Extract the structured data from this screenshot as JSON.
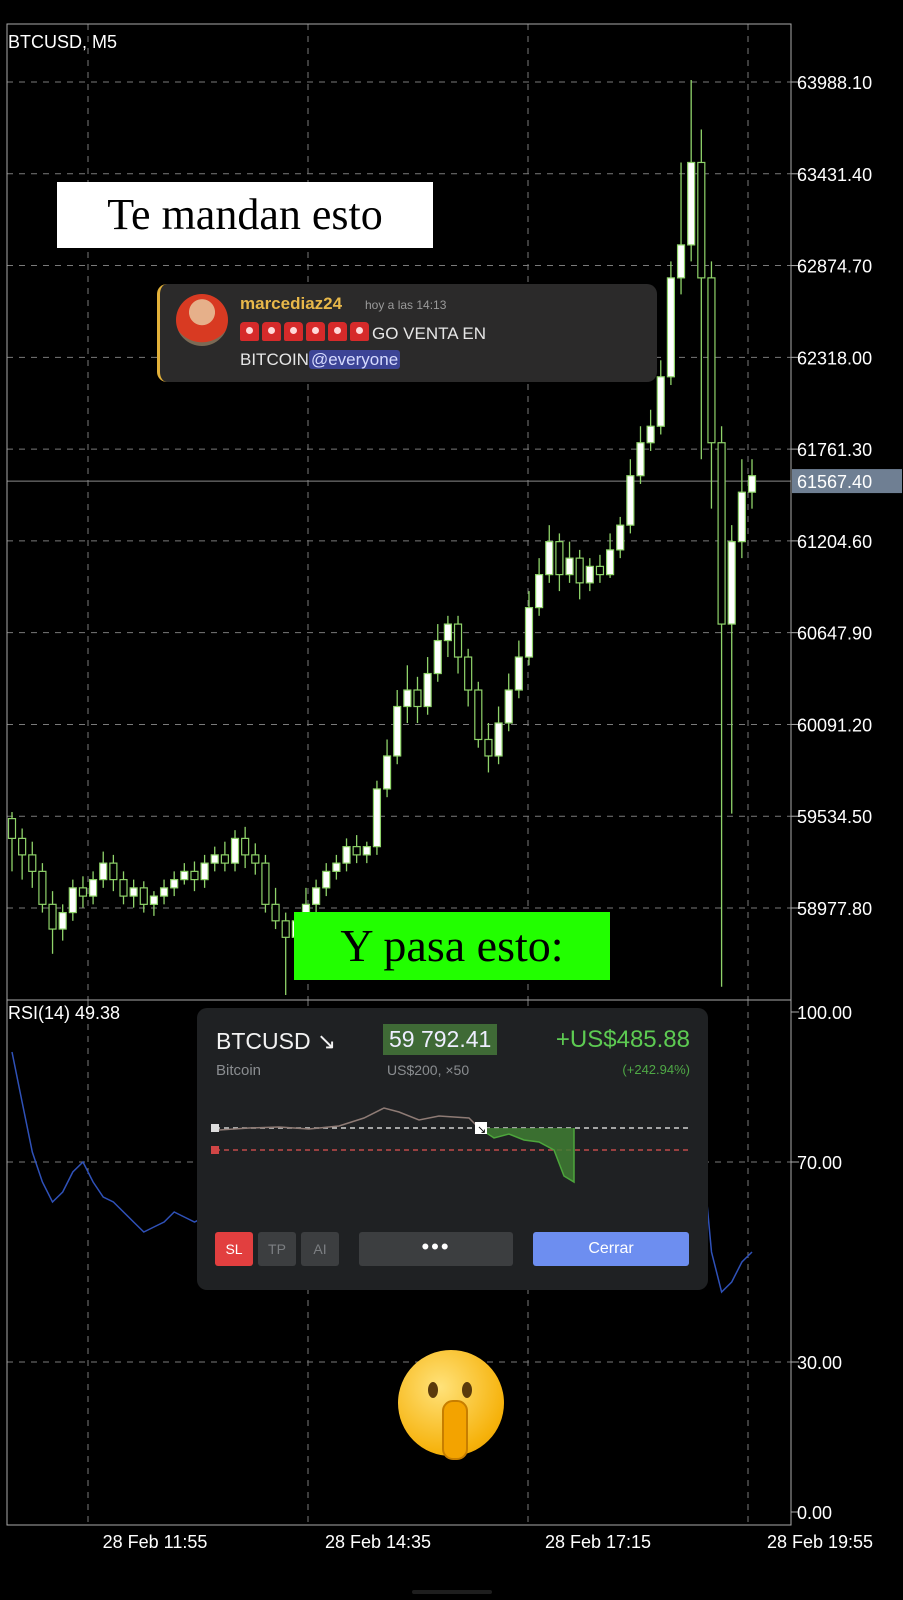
{
  "chart_data": {
    "type": "candlestick",
    "title": "BTCUSD, M5",
    "price_axis": {
      "ticks": [
        58977.8,
        59534.5,
        60091.2,
        60647.9,
        61204.6,
        61761.3,
        62318.0,
        62874.7,
        63431.4,
        63988.1
      ],
      "current_price": 61567.4,
      "range": [
        58450,
        64350
      ]
    },
    "x_ticks": [
      "28 Feb 11:55",
      "28 Feb 14:35",
      "28 Feb 17:15",
      "28 Feb 19:55"
    ],
    "candles": [
      [
        59520,
        59400,
        59560,
        59200
      ],
      [
        59400,
        59300,
        59460,
        59150
      ],
      [
        59300,
        59200,
        59380,
        59100
      ],
      [
        59200,
        59000,
        59250,
        58950
      ],
      [
        59000,
        58850,
        59080,
        58700
      ],
      [
        58850,
        58950,
        59000,
        58780
      ],
      [
        58950,
        59100,
        59150,
        58900
      ],
      [
        59100,
        59050,
        59170,
        58980
      ],
      [
        59050,
        59150,
        59200,
        59000
      ],
      [
        59150,
        59250,
        59320,
        59100
      ],
      [
        59250,
        59150,
        59300,
        59080
      ],
      [
        59150,
        59050,
        59200,
        59000
      ],
      [
        59050,
        59100,
        59150,
        58980
      ],
      [
        59100,
        59000,
        59140,
        58950
      ],
      [
        59000,
        59050,
        59080,
        58930
      ],
      [
        59050,
        59100,
        59150,
        59000
      ],
      [
        59100,
        59150,
        59200,
        59050
      ],
      [
        59150,
        59200,
        59250,
        59120
      ],
      [
        59200,
        59150,
        59260,
        59080
      ],
      [
        59150,
        59250,
        59300,
        59100
      ],
      [
        59250,
        59300,
        59350,
        59200
      ],
      [
        59300,
        59250,
        59380,
        59200
      ],
      [
        59250,
        59400,
        59450,
        59200
      ],
      [
        59400,
        59300,
        59470,
        59220
      ],
      [
        59300,
        59250,
        59370,
        59180
      ],
      [
        59250,
        59000,
        59300,
        58950
      ],
      [
        59000,
        58900,
        59100,
        58850
      ],
      [
        58900,
        58800,
        58950,
        58450
      ],
      [
        58800,
        58900,
        58950,
        58650
      ],
      [
        58900,
        59000,
        59100,
        58880
      ],
      [
        59000,
        59100,
        59150,
        58950
      ],
      [
        59100,
        59200,
        59250,
        59050
      ],
      [
        59200,
        59250,
        59300,
        59150
      ],
      [
        59250,
        59350,
        59400,
        59200
      ],
      [
        59350,
        59300,
        59420,
        59250
      ],
      [
        59300,
        59350,
        59380,
        59250
      ],
      [
        59350,
        59700,
        59750,
        59300
      ],
      [
        59700,
        59900,
        60000,
        59650
      ],
      [
        59900,
        60200,
        60300,
        59850
      ],
      [
        60200,
        60300,
        60450,
        60100
      ],
      [
        60300,
        60200,
        60380,
        60100
      ],
      [
        60200,
        60400,
        60500,
        60150
      ],
      [
        60400,
        60600,
        60700,
        60350
      ],
      [
        60600,
        60700,
        60750,
        60500
      ],
      [
        60700,
        60500,
        60750,
        60400
      ],
      [
        60500,
        60300,
        60550,
        60200
      ],
      [
        60300,
        60000,
        60350,
        59950
      ],
      [
        60000,
        59900,
        60100,
        59800
      ],
      [
        59900,
        60100,
        60200,
        59850
      ],
      [
        60100,
        60300,
        60400,
        60050
      ],
      [
        60300,
        60500,
        60600,
        60250
      ],
      [
        60500,
        60800,
        60900,
        60450
      ],
      [
        60800,
        61000,
        61100,
        60750
      ],
      [
        61000,
        61200,
        61300,
        60950
      ],
      [
        61200,
        61000,
        61250,
        60900
      ],
      [
        61000,
        61100,
        61200,
        60950
      ],
      [
        61100,
        60950,
        61150,
        60850
      ],
      [
        60950,
        61050,
        61100,
        60900
      ],
      [
        61050,
        61000,
        61120,
        60950
      ],
      [
        61000,
        61150,
        61250,
        60980
      ],
      [
        61150,
        61300,
        61350,
        61100
      ],
      [
        61300,
        61600,
        61700,
        61250
      ],
      [
        61600,
        61800,
        61900,
        61550
      ],
      [
        61800,
        61900,
        62000,
        61750
      ],
      [
        61900,
        62200,
        62300,
        61850
      ],
      [
        62200,
        62800,
        62900,
        62150
      ],
      [
        62800,
        63000,
        63500,
        62700
      ],
      [
        63000,
        63500,
        64000,
        62900
      ],
      [
        63500,
        62800,
        63700,
        61700
      ],
      [
        62800,
        61800,
        62900,
        61400
      ],
      [
        61800,
        60700,
        61900,
        58500
      ],
      [
        60700,
        61200,
        61300,
        59550
      ],
      [
        61200,
        61500,
        61700,
        61100
      ],
      [
        61500,
        61600,
        61700,
        61400
      ]
    ],
    "rsi": {
      "label": "RSI(14)",
      "value": "49.38",
      "ticks": [
        0.0,
        30.0,
        70.0,
        100.0
      ],
      "range": [
        0,
        100
      ],
      "values": [
        92,
        82,
        72,
        66,
        62,
        64,
        68,
        70,
        66,
        63,
        62,
        60,
        58,
        56,
        57,
        58,
        60,
        59,
        58,
        59,
        60,
        61,
        60,
        62,
        61,
        58,
        54,
        50,
        51,
        53,
        55,
        56,
        57,
        58,
        57,
        56,
        65,
        70,
        74,
        76,
        75,
        76,
        78,
        79,
        78,
        74,
        70,
        68,
        69,
        70,
        72,
        73,
        75,
        77,
        76,
        75,
        74,
        74,
        74,
        75,
        76,
        77,
        78,
        79,
        80,
        82,
        84,
        86,
        74,
        52,
        44,
        46,
        50,
        52
      ]
    }
  },
  "overlay": {
    "caption_top": "Te mandan esto",
    "caption_bottom": "Y pasa esto:",
    "message": {
      "username": "marcediaz24",
      "time": "hoy a las 14:13",
      "text_line1": "GO VENTA EN",
      "text_line2": "BITCOIN",
      "mention": "@everyone",
      "siren_count": 6
    },
    "trade": {
      "symbol": "BTCUSD",
      "direction_icon": "arrow-down-right-icon",
      "name": "Bitcoin",
      "price": "59 792.41",
      "position": "US$200, ×50",
      "pnl": "+US$485.88",
      "pnl_pct": "(+242.94%)",
      "buttons": {
        "sl": "SL",
        "tp": "TP",
        "ai": "AI",
        "more": "•••",
        "close": "Cerrar"
      }
    }
  },
  "colors": {
    "candle_up": "#ffffff",
    "candle_down": "#8fd36a",
    "wick": "#8fd36a",
    "rsi_line": "#2f51b8",
    "grid": "#7a7a7a",
    "price_badge": "#6f7f93"
  }
}
